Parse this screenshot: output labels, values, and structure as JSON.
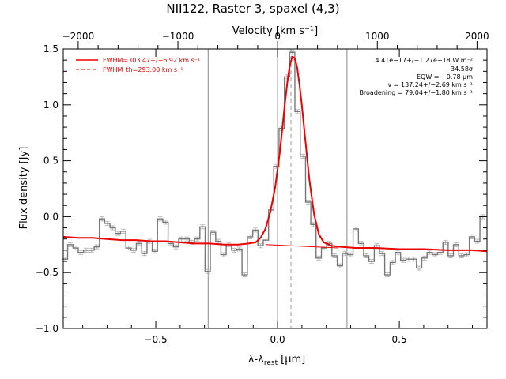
{
  "chart_data": {
    "type": "line",
    "title": "NII122, Raster 3, spaxel (4,3)",
    "xlabel": "λ-λ",
    "xlabel_sub": "rest",
    "xlabel_unit": "[μm]",
    "ylabel": "Flux density [Jy]",
    "top_axis_label": "Velocity [km s⁻¹]",
    "xlim": [
      -0.88,
      0.86
    ],
    "ylim": [
      -1.0,
      1.5
    ],
    "top_xlim": [
      -2150,
      2100
    ],
    "x_ticks": [
      -0.5,
      0.0,
      0.5
    ],
    "x_tick_labels": [
      "−0.5",
      "0.0",
      "0.5"
    ],
    "y_ticks": [
      -1.0,
      -0.5,
      0.0,
      0.5,
      1.0,
      1.5
    ],
    "y_tick_labels": [
      "−1.0",
      "−0.5",
      "0.0",
      "0.5",
      "1.0",
      "1.5"
    ],
    "top_ticks": [
      -2000,
      -1000,
      0,
      1000,
      2000
    ],
    "top_tick_labels": [
      "−2000",
      "−1000",
      "0",
      "1000",
      "2000"
    ],
    "vertical_lines": [
      -0.285,
      0.0,
      0.285
    ],
    "center_line": 0.055,
    "legend": [
      {
        "label": "FWHM=303.47+/−6.92 km s⁻¹",
        "style": "solid"
      },
      {
        "label": "FWHM_th=293.00 km s⁻¹",
        "style": "dashed"
      }
    ],
    "annotations": [
      "4.41e−17+/−1.27e−18 W m⁻²",
      "34.58σ",
      "EQW = −0.78 μm",
      "v = 137.24+/−2.69 km s⁻¹",
      "Broadening = 79.04+/−1.80 km s⁻¹"
    ],
    "spectrum_bin_width": 0.0217,
    "spectrum_x": [
      -0.873,
      -0.851,
      -0.829,
      -0.808,
      -0.786,
      -0.764,
      -0.742,
      -0.721,
      -0.699,
      -0.677,
      -0.656,
      -0.634,
      -0.612,
      -0.591,
      -0.569,
      -0.547,
      -0.525,
      -0.504,
      -0.482,
      -0.46,
      -0.439,
      -0.417,
      -0.395,
      -0.373,
      -0.352,
      -0.33,
      -0.308,
      -0.287,
      -0.265,
      -0.243,
      -0.222,
      -0.2,
      -0.178,
      -0.157,
      -0.135,
      -0.113,
      -0.091,
      -0.07,
      -0.048,
      -0.026,
      -0.005,
      0.017,
      0.039,
      0.06,
      0.082,
      0.104,
      0.126,
      0.147,
      0.169,
      0.191,
      0.212,
      0.234,
      0.256,
      0.277,
      0.299,
      0.321,
      0.343,
      0.364,
      0.386,
      0.408,
      0.429,
      0.451,
      0.473,
      0.494,
      0.516,
      0.538,
      0.56,
      0.581,
      0.603,
      0.625,
      0.646,
      0.668,
      0.69,
      0.711,
      0.733,
      0.755,
      0.777,
      0.798,
      0.82,
      0.842
    ],
    "spectrum_y": [
      -0.38,
      -0.25,
      -0.28,
      -0.32,
      -0.3,
      -0.3,
      -0.27,
      -0.02,
      -0.06,
      -0.1,
      -0.15,
      -0.13,
      -0.28,
      -0.3,
      -0.24,
      -0.33,
      -0.22,
      -0.31,
      -0.02,
      -0.05,
      -0.24,
      -0.27,
      -0.2,
      -0.2,
      -0.23,
      -0.2,
      -0.09,
      -0.49,
      -0.14,
      -0.22,
      -0.34,
      -0.25,
      -0.3,
      -0.29,
      -0.52,
      -0.18,
      -0.12,
      -0.26,
      -0.21,
      0.06,
      0.45,
      0.79,
      1.25,
      1.47,
      0.94,
      0.54,
      0.13,
      -0.07,
      -0.37,
      -0.28,
      -0.24,
      -0.35,
      -0.44,
      -0.33,
      -0.34,
      -0.11,
      -0.24,
      -0.35,
      -0.4,
      -0.26,
      -0.33,
      -0.52,
      -0.41,
      -0.32,
      -0.39,
      -0.38,
      -0.38,
      -0.46,
      -0.37,
      -0.32,
      -0.34,
      -0.32,
      -0.23,
      -0.35,
      -0.25,
      -0.35,
      -0.34,
      -0.18,
      -0.22,
      0.0
    ],
    "fit_x": [
      -0.88,
      -0.82,
      -0.76,
      -0.7,
      -0.64,
      -0.58,
      -0.52,
      -0.46,
      -0.4,
      -0.34,
      -0.28,
      -0.22,
      -0.16,
      -0.12,
      -0.09,
      -0.07,
      -0.05,
      -0.03,
      -0.01,
      0.01,
      0.02,
      0.03,
      0.04,
      0.05,
      0.06,
      0.07,
      0.08,
      0.09,
      0.1,
      0.11,
      0.13,
      0.15,
      0.17,
      0.19,
      0.22,
      0.26,
      0.32,
      0.4,
      0.5,
      0.6,
      0.7,
      0.8,
      0.86
    ],
    "fit_y": [
      -0.18,
      -0.19,
      -0.19,
      -0.2,
      -0.21,
      -0.21,
      -0.22,
      -0.22,
      -0.23,
      -0.24,
      -0.24,
      -0.25,
      -0.25,
      -0.24,
      -0.23,
      -0.19,
      -0.11,
      0.04,
      0.26,
      0.59,
      0.8,
      1.01,
      1.2,
      1.35,
      1.43,
      1.42,
      1.34,
      1.18,
      0.99,
      0.77,
      0.34,
      0.02,
      -0.16,
      -0.23,
      -0.26,
      -0.27,
      -0.28,
      -0.28,
      -0.29,
      -0.29,
      -0.3,
      -0.3,
      -0.31
    ],
    "continuum_x": [
      -0.05,
      0.25
    ],
    "continuum_y": [
      -0.25,
      -0.28
    ],
    "colors": {
      "spectrum": "#777777",
      "errorbar": "#bbbbbb",
      "fit": "#ee0000",
      "axis": "#000000",
      "guide": "#888888"
    }
  }
}
